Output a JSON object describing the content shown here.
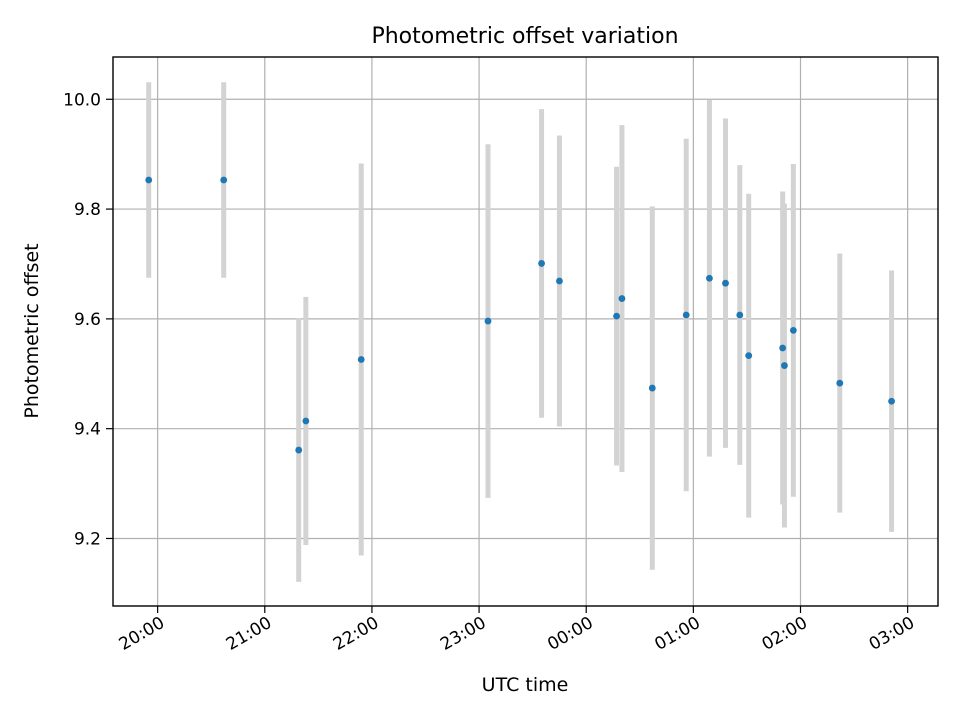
{
  "chart_data": {
    "type": "scatter",
    "title": "Photometric offset variation",
    "xlabel": "UTC time",
    "ylabel": "Photometric offset",
    "x_tick_labels": [
      "20:00",
      "21:00",
      "22:00",
      "23:00",
      "00:00",
      "01:00",
      "02:00",
      "03:00"
    ],
    "y_tick_labels": [
      "9.2",
      "9.4",
      "9.6",
      "9.8",
      "10.0"
    ],
    "y_ticks": [
      9.2,
      9.4,
      9.6,
      9.8,
      10.0
    ],
    "x_range": [
      "19:35",
      "03:17"
    ],
    "ylim": [
      9.077,
      10.077
    ],
    "grid": true,
    "series": [
      {
        "points": [
          {
            "t": "19:55",
            "y": 9.853,
            "err": 0.178
          },
          {
            "t": "20:37",
            "y": 9.853,
            "err": 0.178
          },
          {
            "t": "21:19",
            "y": 9.361,
            "err": 0.24
          },
          {
            "t": "21:23",
            "y": 9.414,
            "err": 0.226
          },
          {
            "t": "21:54",
            "y": 9.526,
            "err": 0.357
          },
          {
            "t": "23:05",
            "y": 9.596,
            "err": 0.322
          },
          {
            "t": "23:35",
            "y": 9.701,
            "err": 0.281
          },
          {
            "t": "23:45",
            "y": 9.669,
            "err": 0.265
          },
          {
            "t": "00:17",
            "y": 9.605,
            "err": 0.272
          },
          {
            "t": "00:20",
            "y": 9.637,
            "err": 0.316
          },
          {
            "t": "00:37",
            "y": 9.474,
            "err": 0.331
          },
          {
            "t": "00:56",
            "y": 9.607,
            "err": 0.321
          },
          {
            "t": "01:09",
            "y": 9.674,
            "err": 0.325
          },
          {
            "t": "01:18",
            "y": 9.665,
            "err": 0.3
          },
          {
            "t": "01:26",
            "y": 9.607,
            "err": 0.273
          },
          {
            "t": "01:31",
            "y": 9.533,
            "err": 0.295
          },
          {
            "t": "01:50",
            "y": 9.547,
            "err": 0.285
          },
          {
            "t": "01:51",
            "y": 9.515,
            "err": 0.295
          },
          {
            "t": "01:56",
            "y": 9.579,
            "err": 0.303
          },
          {
            "t": "02:22",
            "y": 9.483,
            "err": 0.236
          },
          {
            "t": "02:51",
            "y": 9.45,
            "err": 0.238
          }
        ]
      }
    ],
    "colors": {
      "points": "#1f77b4",
      "errorbars": "#d3d3d3",
      "grid": "#b0b0b0"
    }
  }
}
